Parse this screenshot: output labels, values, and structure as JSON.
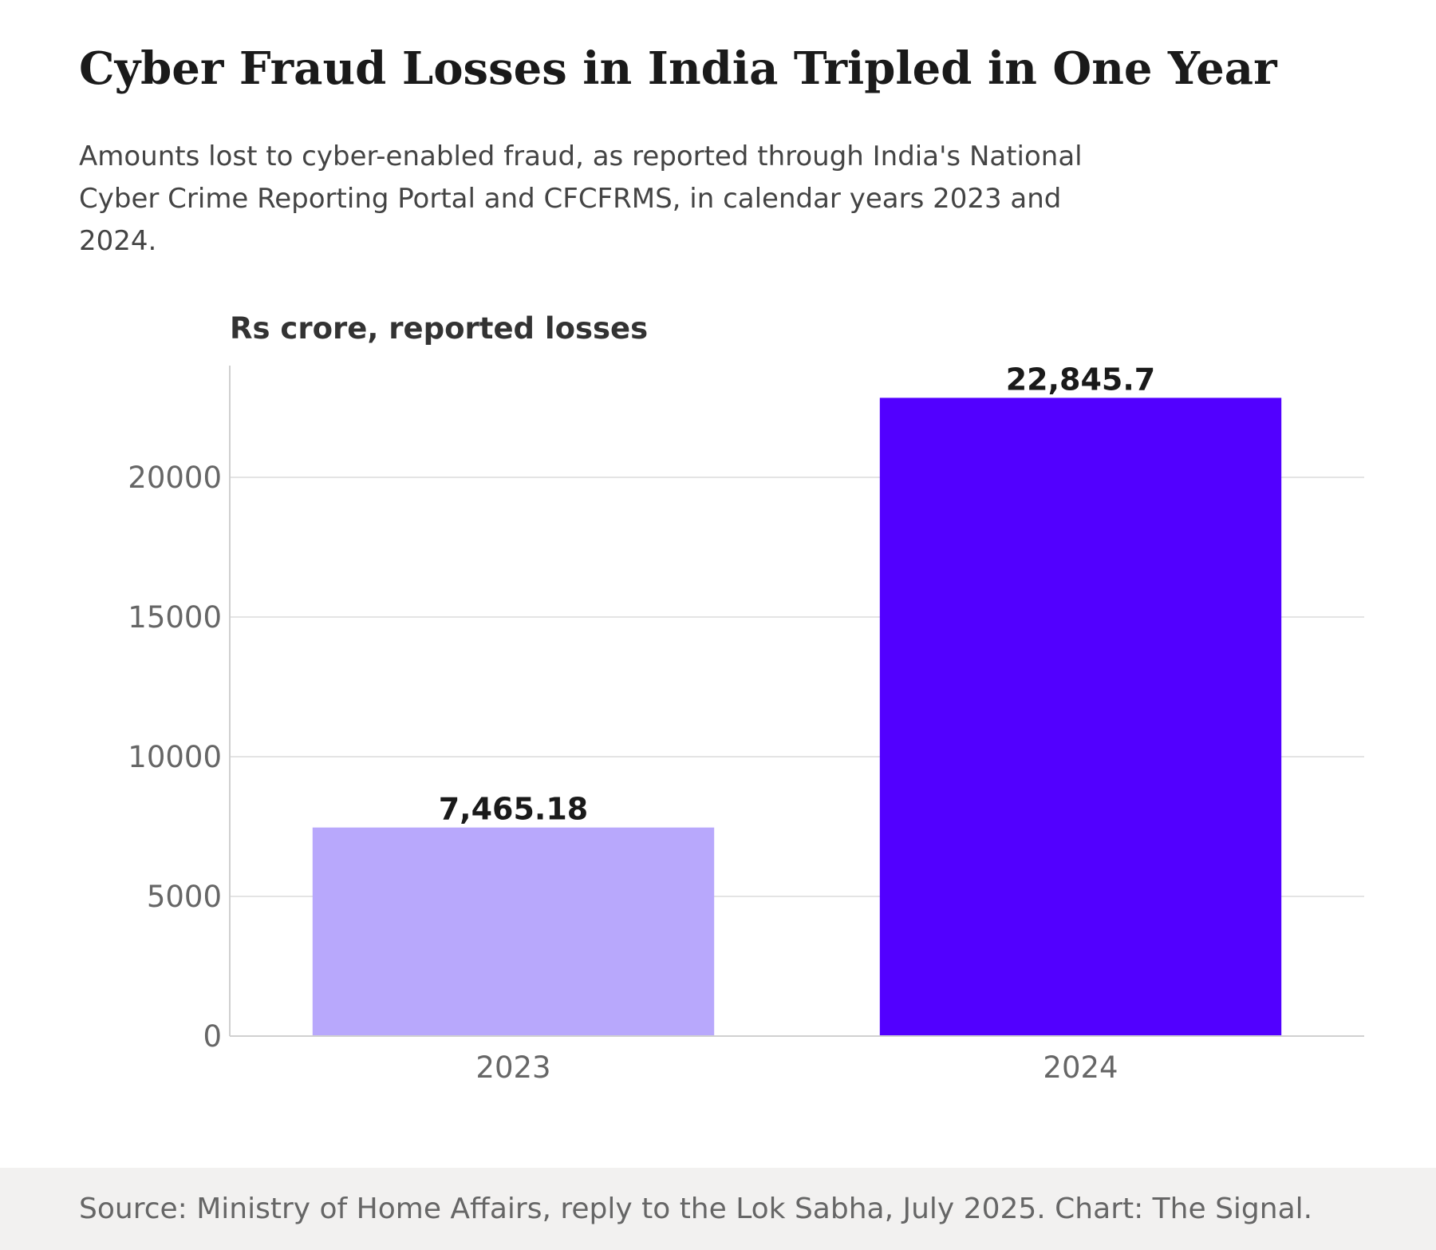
{
  "chart_data": {
    "type": "bar",
    "title": "Cyber Fraud Losses in India Tripled in One Year",
    "subtitle": "Amounts lost to cyber-enabled fraud, as reported through India's National Cyber Crime Reporting Portal and CFCFRMS, in calendar years 2023 and 2024.",
    "ylabel": "Rs crore, reported losses",
    "xlabel": "",
    "categories": [
      "2023",
      "2024"
    ],
    "values": [
      7465.18,
      22845.7
    ],
    "value_labels": [
      "7,465.18",
      "22,845.7"
    ],
    "bar_colors": [
      "#b8a8fc",
      "#5200ff"
    ],
    "ylim": [
      0,
      24000
    ],
    "yticks": [
      0,
      5000,
      10000,
      15000,
      20000
    ],
    "grid": true,
    "legend": "none"
  },
  "colors": {
    "grid": "#e4e4e4",
    "axis": "#d0d0d0",
    "tick_text": "#666666",
    "label_text": "#1a1a1a",
    "ylabel_text": "#333333"
  },
  "footer": {
    "source": "Source: Ministry of Home Affairs, reply to the Lok Sabha, July 2025. Chart: The Signal."
  }
}
